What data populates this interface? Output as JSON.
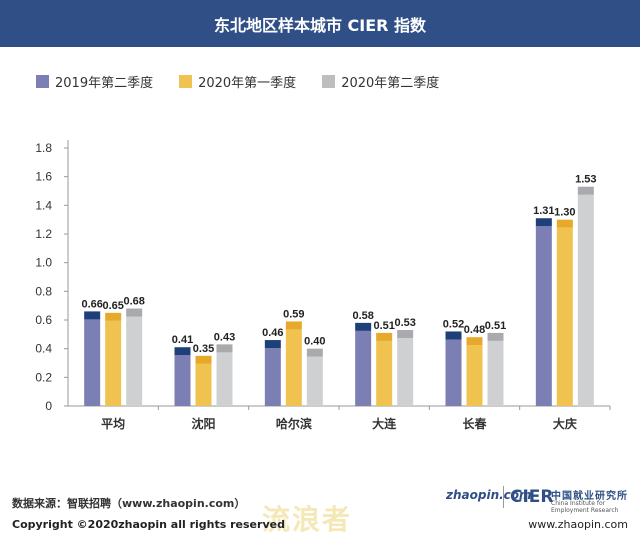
{
  "title": "东北地区样本城市 CIER 指数",
  "legend": [
    {
      "label": "2019年第二季度",
      "color": "#7b7fb4"
    },
    {
      "label": "2020年第一季度",
      "color": "#f0c350"
    },
    {
      "label": "2020年第二季度",
      "color": "#bdbec0"
    }
  ],
  "chart_data": {
    "type": "bar",
    "title": "东北地区样本城市 CIER 指数",
    "categories": [
      "平均",
      "沈阳",
      "哈尔滨",
      "大连",
      "长春",
      "大庆"
    ],
    "series": [
      {
        "name": "2019年第二季度",
        "values": [
          0.66,
          0.41,
          0.46,
          0.58,
          0.52,
          1.31
        ],
        "labels": [
          "0.66",
          "0.41",
          "0.46",
          "0.58",
          "0.52",
          "1.31"
        ],
        "color": "#7b7fb4",
        "cap_color": "#1d3f7a"
      },
      {
        "name": "2020年第一季度",
        "values": [
          0.65,
          0.35,
          0.59,
          0.51,
          0.48,
          1.3
        ],
        "labels": [
          "0.65",
          "0.35",
          "0.59",
          "0.51",
          "0.48",
          "1.30"
        ],
        "color": "#f0c350",
        "cap_color": "#e6a92a"
      },
      {
        "name": "2020年第二季度",
        "values": [
          0.68,
          0.43,
          0.4,
          0.53,
          0.51,
          1.53
        ],
        "labels": [
          "0.68",
          "0.43",
          "0.40",
          "0.53",
          "0.51",
          "1.53"
        ],
        "color": "#cfd0d2",
        "cap_color": "#a9aaad"
      }
    ],
    "yticks": [
      "0",
      "0.2",
      "0.4",
      "0.6",
      "0.8",
      "1.0",
      "1.2",
      "1.4",
      "1.6",
      "1.8"
    ],
    "ylim": [
      0,
      1.8
    ],
    "xlabel": "",
    "ylabel": "",
    "grid": false,
    "legend_position": "top-left"
  },
  "footer": {
    "source": "数据来源：智联招聘（www.zhaopin.com）",
    "copyright": "Copyright ©2020zhaopin all rights reserved",
    "url": "www.zhaopin.com"
  },
  "logos": {
    "zhaopin": "zhaopin.com",
    "cier": "CIER",
    "cier_cn": "中国就业研究所",
    "cier_en": "China Institute for Employment Research",
    "watermark": "流浪者"
  }
}
